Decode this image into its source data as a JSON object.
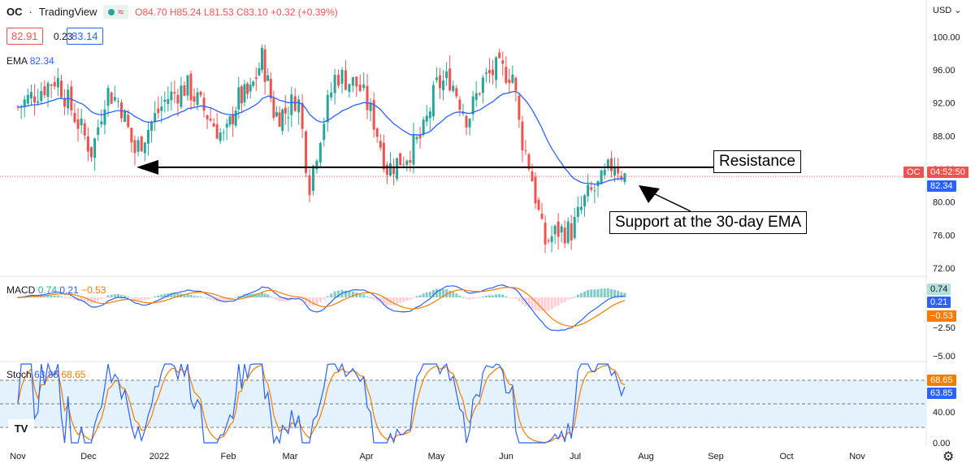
{
  "header": {
    "symbol": "OC",
    "source": "TradingView",
    "open": "O84.70",
    "high": "H85.24",
    "low": "L81.53",
    "close": "C83.10",
    "change": "+0.32 (+0.39%)",
    "bid": "82.91",
    "spread": "0.23",
    "ask": "83.14"
  },
  "currency": "USD",
  "ema_label": "EMA",
  "ema_value": "82.34",
  "macd_label": "MACD",
  "macd_values": {
    "hist": "0.74",
    "macd": "0.21",
    "signal": "−0.53"
  },
  "stoch_label": "Stoch",
  "stoch_values": {
    "k": "63.85",
    "d": "68.65"
  },
  "price_badge": {
    "ticker": "OC",
    "time": "04:52:50"
  },
  "annotations": {
    "resistance": "Resistance",
    "support": "Support at the 30-day EMA"
  },
  "colors": {
    "up": "#26a69a",
    "down": "#ef5350",
    "ema": "#2962ff",
    "signal": "#f57c00",
    "stoch_band": "#e3f2fd"
  },
  "chart_data": {
    "type": "candlestick",
    "price_axis": {
      "ticks": [
        "100.00",
        "96.00",
        "92.00",
        "88.00",
        "84.00",
        "80.00",
        "76.00",
        "72.00"
      ],
      "ylim": [
        71.5,
        101.5
      ]
    },
    "macd_axis": {
      "ticks": [
        "−2.50",
        "−5.00"
      ]
    },
    "stoch_axis": {
      "ticks": [
        "40.00",
        "0.00"
      ],
      "band": [
        20,
        80
      ]
    },
    "x_labels": [
      "Nov",
      "Dec",
      "2022",
      "Feb",
      "Mar",
      "Apr",
      "May",
      "Jun",
      "Jul",
      "Aug",
      "Sep",
      "Oct",
      "Nov"
    ],
    "resistance_level": 84.2,
    "last_close": 83.1,
    "price_path": [
      {
        "m": 0.0,
        "p": 91.5
      },
      {
        "m": 0.3,
        "p": 93.5
      },
      {
        "m": 0.55,
        "p": 95.0
      },
      {
        "m": 0.8,
        "p": 90.5
      },
      {
        "m": 1.05,
        "p": 86.0
      },
      {
        "m": 1.25,
        "p": 93.5
      },
      {
        "m": 1.45,
        "p": 92.0
      },
      {
        "m": 1.65,
        "p": 86.0
      },
      {
        "m": 1.85,
        "p": 89.0
      },
      {
        "m": 2.1,
        "p": 92.5
      },
      {
        "m": 2.4,
        "p": 94.0
      },
      {
        "m": 2.7,
        "p": 90.5
      },
      {
        "m": 2.95,
        "p": 87.5
      },
      {
        "m": 3.15,
        "p": 92.5
      },
      {
        "m": 3.35,
        "p": 93.0
      },
      {
        "m": 3.55,
        "p": 97.5
      },
      {
        "m": 3.75,
        "p": 90.5
      },
      {
        "m": 3.95,
        "p": 91.0
      },
      {
        "m": 4.1,
        "p": 93.0
      },
      {
        "m": 4.25,
        "p": 82.0
      },
      {
        "m": 4.4,
        "p": 88.5
      },
      {
        "m": 4.6,
        "p": 95.5
      },
      {
        "m": 4.9,
        "p": 94.0
      },
      {
        "m": 5.1,
        "p": 90.0
      },
      {
        "m": 5.3,
        "p": 84.0
      },
      {
        "m": 5.55,
        "p": 85.5
      },
      {
        "m": 5.8,
        "p": 88.0
      },
      {
        "m": 6.0,
        "p": 94.0
      },
      {
        "m": 6.2,
        "p": 95.0
      },
      {
        "m": 6.45,
        "p": 90.0
      },
      {
        "m": 6.65,
        "p": 94.5
      },
      {
        "m": 6.85,
        "p": 96.0
      },
      {
        "m": 7.1,
        "p": 95.5
      },
      {
        "m": 7.2,
        "p": 88.5
      },
      {
        "m": 7.35,
        "p": 84.0
      },
      {
        "m": 7.55,
        "p": 75.0
      },
      {
        "m": 7.75,
        "p": 76.5
      },
      {
        "m": 7.95,
        "p": 76.5
      },
      {
        "m": 8.15,
        "p": 80.5
      },
      {
        "m": 8.35,
        "p": 82.0
      },
      {
        "m": 8.55,
        "p": 85.0
      },
      {
        "m": 8.7,
        "p": 83.1
      }
    ]
  }
}
